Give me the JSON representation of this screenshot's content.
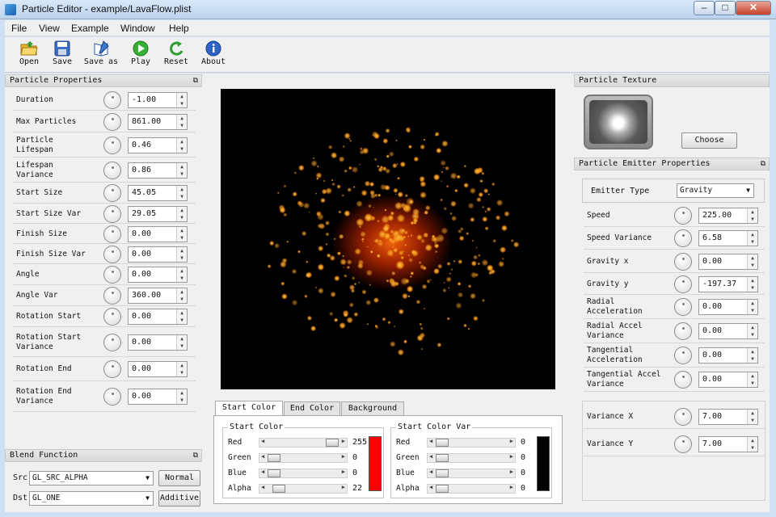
{
  "window": {
    "title": "Particle Editor - example/LavaFlow.plist",
    "min": "‒",
    "max": "□",
    "close": "✕"
  },
  "menu": [
    "File",
    "View",
    "Example",
    "Window",
    "Help"
  ],
  "toolbar": [
    {
      "label": "Open",
      "icon": "folder-open-icon"
    },
    {
      "label": "Save",
      "icon": "save-icon"
    },
    {
      "label": "Save as",
      "icon": "save-as-icon"
    },
    {
      "label": "Play",
      "icon": "play-icon"
    },
    {
      "label": "Reset",
      "icon": "reset-icon"
    },
    {
      "label": "About",
      "icon": "info-icon"
    }
  ],
  "particle_properties": {
    "title": "Particle Properties",
    "rows": [
      {
        "label": "Duration",
        "value": "-1.00"
      },
      {
        "label": "Max Particles",
        "value": "861.00"
      },
      {
        "label": "Particle\nLifespan",
        "value": "0.46"
      },
      {
        "label": "Lifespan\nVariance",
        "value": "0.86"
      },
      {
        "label": "Start Size",
        "value": "45.05"
      },
      {
        "label": "Start Size Var",
        "value": "29.05"
      },
      {
        "label": "Finish Size",
        "value": "0.00"
      },
      {
        "label": "Finish Size Var",
        "value": "0.00"
      },
      {
        "label": "Angle",
        "value": "0.00"
      },
      {
        "label": "Angle Var",
        "value": "360.00"
      },
      {
        "label": "Rotation Start",
        "value": "0.00"
      },
      {
        "label": "Rotation Start\nVariance",
        "value": "0.00"
      },
      {
        "label": "Rotation End",
        "value": "0.00"
      },
      {
        "label": "Rotation End\nVariance",
        "value": "0.00"
      }
    ]
  },
  "blend_function": {
    "title": "Blend Function",
    "src_label": "Src",
    "src_value": "GL_SRC_ALPHA",
    "dst_label": "Dst",
    "dst_value": "GL_ONE",
    "normal_button": "Normal",
    "additive_button": "Additive"
  },
  "color_tabs": [
    "Start Color",
    "End Color",
    "Background"
  ],
  "start_color": {
    "title": "Start Color",
    "rows": [
      {
        "label": "Red",
        "value": "255",
        "level": 1.0
      },
      {
        "label": "Green",
        "value": "0",
        "level": 0.0
      },
      {
        "label": "Blue",
        "value": "0",
        "level": 0.0
      },
      {
        "label": "Alpha",
        "value": "22",
        "level": 0.086
      }
    ],
    "swatch": "#ff0000"
  },
  "start_color_var": {
    "title": "Start Color Var",
    "rows": [
      {
        "label": "Red",
        "value": "0",
        "level": 0.0
      },
      {
        "label": "Green",
        "value": "0",
        "level": 0.0
      },
      {
        "label": "Blue",
        "value": "0",
        "level": 0.0
      },
      {
        "label": "Alpha",
        "value": "0",
        "level": 0.0
      }
    ],
    "swatch": "#000000"
  },
  "texture": {
    "title": "Particle Texture",
    "choose_button": "Choose"
  },
  "emitter": {
    "title": "Particle Emitter Properties",
    "type_label": "Emitter Type",
    "type_value": "Gravity",
    "rows": [
      {
        "label": "Speed",
        "value": "225.00"
      },
      {
        "label": "Speed Variance",
        "value": "6.58"
      },
      {
        "label": "Gravity x",
        "value": "0.00"
      },
      {
        "label": "Gravity y",
        "value": "-197.37"
      },
      {
        "label": "Radial\nAcceleration",
        "value": "0.00"
      },
      {
        "label": "Radial Accel\nVariance",
        "value": "0.00"
      },
      {
        "label": "Tangential\nAcceleration",
        "value": "0.00"
      },
      {
        "label": "Tangential Accel\nVariance",
        "value": "0.00"
      }
    ],
    "variance": [
      {
        "label": "Variance X",
        "value": "7.00"
      },
      {
        "label": "Variance Y",
        "value": "7.00"
      }
    ]
  }
}
